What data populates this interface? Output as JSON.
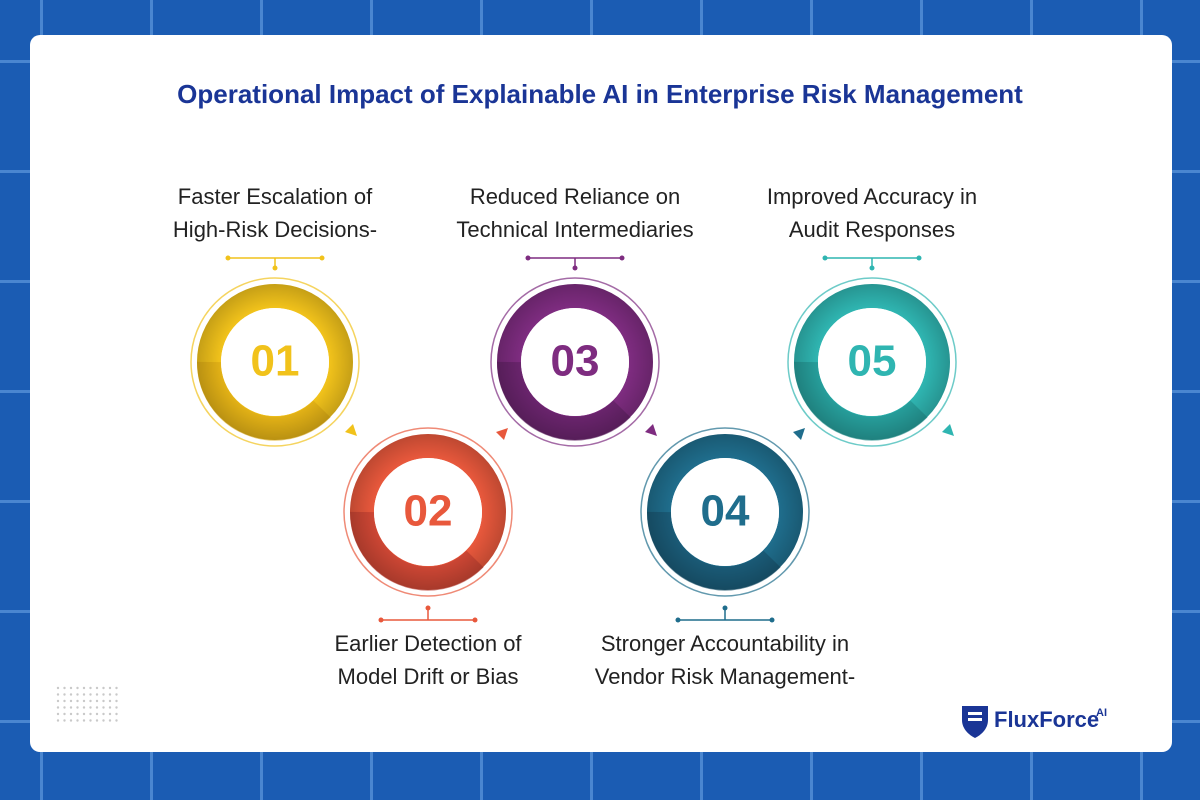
{
  "title": "Operational Impact of Explainable AI in Enterprise Risk Management",
  "steps": [
    {
      "number": "01",
      "label": [
        "Faster Escalation of",
        "High-Risk Decisions-"
      ]
    },
    {
      "number": "02",
      "label": [
        "Earlier Detection of",
        "Model Drift or Bias"
      ]
    },
    {
      "number": "03",
      "label": [
        "Reduced Reliance on",
        "Technical Intermediaries"
      ]
    },
    {
      "number": "04",
      "label": [
        "Stronger Accountability in",
        "Vendor Risk Management-"
      ]
    },
    {
      "number": "05",
      "label": [
        "Improved Accuracy in",
        "Audit Responses"
      ]
    }
  ],
  "logo": {
    "name": "FluxForce",
    "suffix": "AI"
  }
}
